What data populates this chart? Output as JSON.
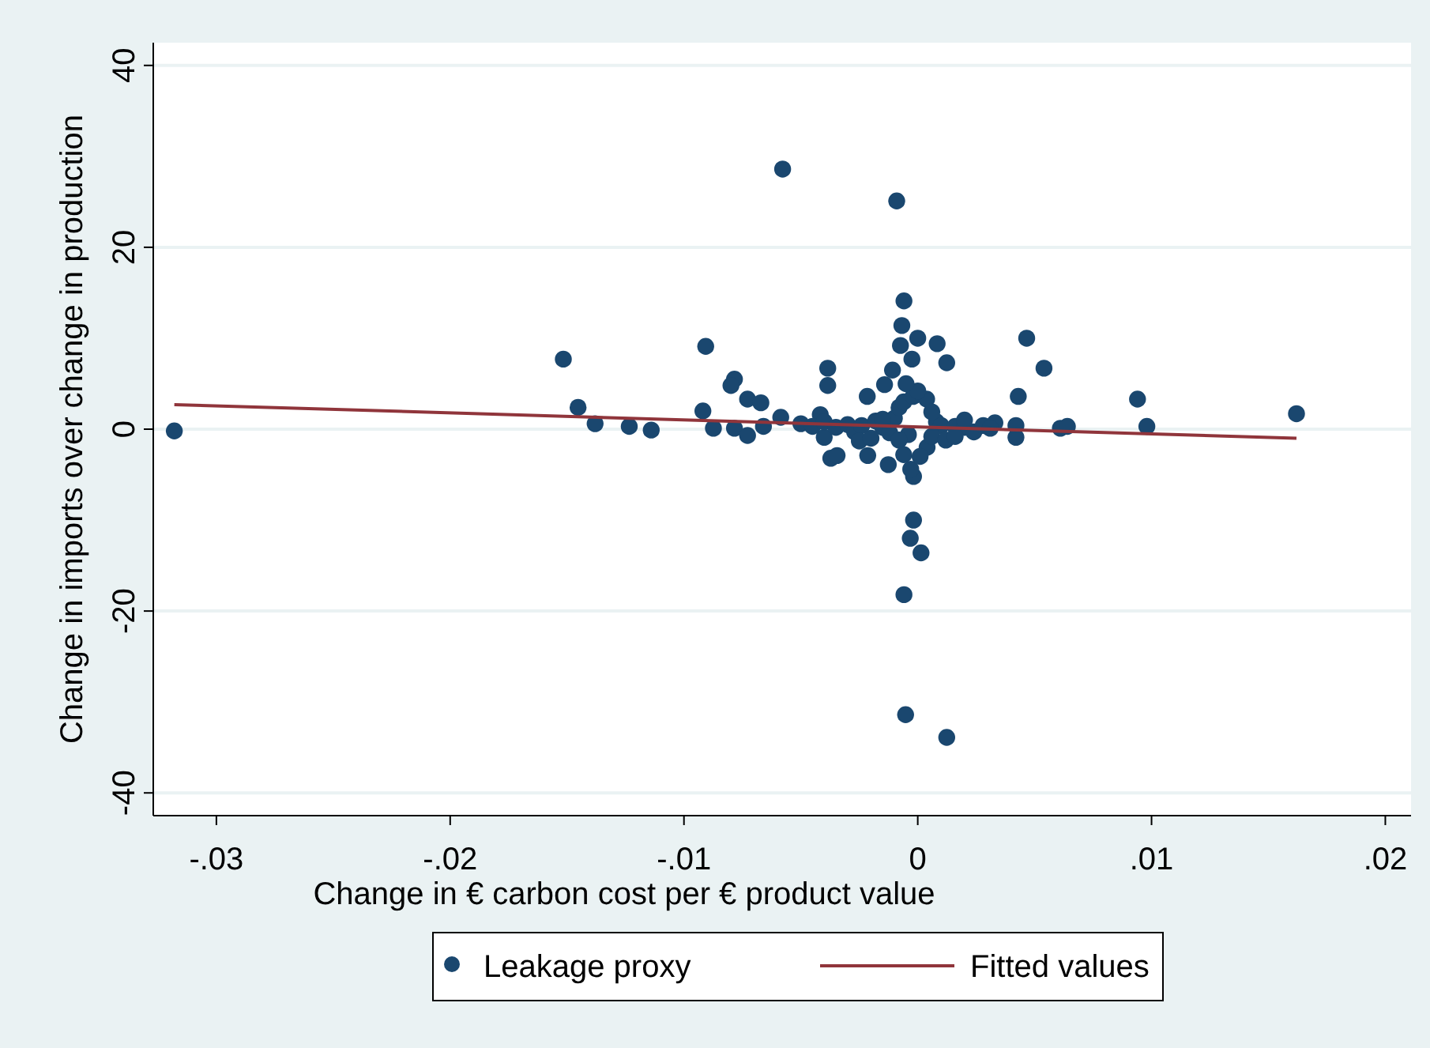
{
  "chart_data": {
    "type": "scatter",
    "xlabel": "Change in € carbon cost per € product value",
    "ylabel": "Change in imports over change in production",
    "xlim": [
      -0.0327,
      0.0211
    ],
    "ylim": [
      -42.5,
      42.5
    ],
    "xticks": [
      {
        "value": -0.03,
        "label": "-.03"
      },
      {
        "value": -0.02,
        "label": "-.02"
      },
      {
        "value": -0.01,
        "label": "-.01"
      },
      0,
      {
        "value": 0.01,
        "label": ".01"
      },
      {
        "value": 0.02,
        "label": ".02"
      }
    ],
    "yticks": [
      -40,
      -20,
      0,
      20,
      40
    ],
    "grid": "y",
    "legend": "bottom",
    "marker": "circle",
    "series": [
      {
        "name": "Leakage proxy",
        "color": "#1a476f",
        "x": [
          -0.0318,
          -0.00578,
          -0.0009,
          -0.00059,
          -0.00068,
          0.0,
          -0.00074,
          0.00083,
          0.00124,
          -0.00025,
          0.00466,
          0.0054,
          0.0094,
          0.0043,
          -0.01516,
          -0.01453,
          -0.0138,
          -0.01234,
          -0.0114,
          -0.00907,
          -0.00919,
          -0.00874,
          -0.00784,
          -0.00799,
          -0.00728,
          -0.00671,
          -0.00784,
          -0.00728,
          -0.0066,
          -0.00586,
          -0.00385,
          -0.00385,
          -0.00216,
          -0.00108,
          -0.00142,
          0.00038,
          -0.00417,
          -0.004,
          -0.00372,
          -0.00345,
          -0.00214,
          -0.00126,
          -0.00018,
          -0.00018,
          -0.00032,
          0.00014,
          -0.00059,
          -0.00052,
          0.00124,
          0.0033,
          0.0042,
          0.0042,
          0.0061,
          0.0064,
          0.0098,
          0.0162,
          -0.005,
          -0.0045,
          -0.004,
          -0.0035,
          -0.003,
          -0.0027,
          -0.0024,
          -0.0018,
          -0.0015,
          -0.0012,
          -0.001,
          -0.0004,
          0.0008,
          0.001,
          0.0016,
          0.002,
          0.0024,
          0.0028,
          0.0031,
          -0.0008,
          -0.0006,
          -0.0002,
          0.0006,
          -0.0008,
          -0.0006,
          0.0,
          0.0004,
          0.0006,
          -0.0005,
          -0.0003,
          0.0001,
          -0.0025,
          -0.002,
          -0.0015,
          0.0012,
          0.0016,
          0.002
        ],
        "values": [
          -0.2,
          28.6,
          25.1,
          14.1,
          11.4,
          10.0,
          9.2,
          9.4,
          7.3,
          7.7,
          10.0,
          6.7,
          3.3,
          3.6,
          7.7,
          2.4,
          0.6,
          0.3,
          -0.1,
          9.1,
          2.0,
          0.1,
          5.5,
          4.8,
          3.3,
          2.9,
          0.1,
          -0.7,
          0.3,
          1.3,
          6.7,
          4.8,
          3.6,
          6.5,
          4.9,
          3.3,
          1.6,
          -0.9,
          -3.2,
          -2.9,
          -2.9,
          -3.9,
          -5.2,
          -10.0,
          -12.0,
          -13.6,
          -18.2,
          -31.4,
          -33.9,
          0.7,
          0.4,
          -0.9,
          0.1,
          0.3,
          0.3,
          1.7,
          0.6,
          0.3,
          0.8,
          0.2,
          0.5,
          -0.3,
          0.4,
          0.9,
          0.2,
          -0.4,
          1.2,
          -0.6,
          0.8,
          0.4,
          0.3,
          0.2,
          -0.3,
          0.4,
          0.1,
          2.4,
          3.0,
          3.6,
          1.9,
          -1.2,
          -2.8,
          4.2,
          -2.0,
          -0.8,
          5.0,
          -4.4,
          -3.0,
          -1.3,
          -1.0,
          1.1,
          -1.2,
          -0.8,
          1.0
        ]
      },
      {
        "name": "Fitted values",
        "color": "#90353b",
        "type": "line",
        "marker": "none",
        "x": [
          -0.0318,
          0.0162
        ],
        "values": [
          2.7,
          -1.0
        ]
      }
    ]
  }
}
